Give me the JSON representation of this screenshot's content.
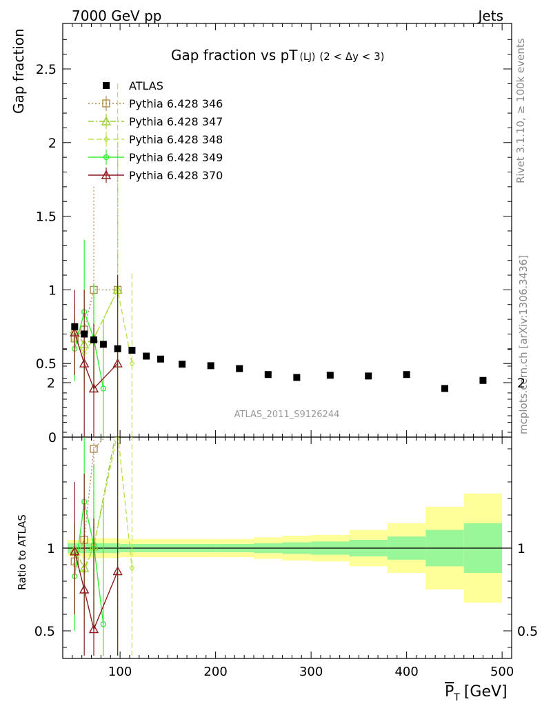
{
  "header": {
    "left": "7000 GeV pp",
    "right": "Jets",
    "side_top": "Rivet 3.1.10, ≥ 100k events",
    "side_bottom": "mcplots.cern.ch [arXiv:1306.3436]"
  },
  "chart_data": {
    "type": "scatter",
    "title": "Gap fraction vs pT",
    "title_sub": "(LJ)",
    "title_cut": "(2 < Δy < 3)",
    "ylabel": "Gap fraction",
    "ratio_ylabel": "Ratio to ATLAS",
    "xlabel": "P",
    "xlabel_sub": "T",
    "xlabel_unit": "[GeV]",
    "watermark": "ATLAS_2011_S9126244",
    "xlim": [
      40,
      510
    ],
    "ylim": [
      0,
      2.8
    ],
    "ratio_ylim": [
      0.35,
      2.3
    ],
    "xticks": [
      100,
      200,
      300,
      400,
      500
    ],
    "yticks": [
      0,
      0.5,
      1,
      1.5,
      2,
      2.5
    ],
    "ratio_yticks": [
      0.5,
      1,
      2
    ],
    "grid": false,
    "legend_position": "top-left",
    "data": {
      "name": "ATLAS",
      "points": [
        {
          "x": 52.5,
          "y": 0.75,
          "xlo": 45,
          "xhi": 60
        },
        {
          "x": 62.5,
          "y": 0.7,
          "xlo": 60,
          "xhi": 65
        },
        {
          "x": 72.5,
          "y": 0.66,
          "xlo": 70,
          "xhi": 75
        },
        {
          "x": 82.5,
          "y": 0.63,
          "xlo": 80,
          "xhi": 85
        },
        {
          "x": 97.5,
          "y": 0.6,
          "xlo": 95,
          "xhi": 100
        },
        {
          "x": 112.5,
          "y": 0.59,
          "xlo": 110,
          "xhi": 115
        },
        {
          "x": 127.5,
          "y": 0.55,
          "xlo": 120,
          "xhi": 135
        },
        {
          "x": 142.5,
          "y": 0.53,
          "xlo": 135,
          "xhi": 150
        },
        {
          "x": 165,
          "y": 0.495,
          "xlo": 150,
          "xhi": 180
        },
        {
          "x": 195,
          "y": 0.485,
          "xlo": 180,
          "xhi": 210
        },
        {
          "x": 225,
          "y": 0.465,
          "xlo": 210,
          "xhi": 240
        },
        {
          "x": 255,
          "y": 0.425,
          "xlo": 240,
          "xhi": 270
        },
        {
          "x": 285,
          "y": 0.405,
          "xlo": 270,
          "xhi": 300
        },
        {
          "x": 320,
          "y": 0.42,
          "xlo": 300,
          "xhi": 340
        },
        {
          "x": 360,
          "y": 0.415,
          "xlo": 340,
          "xhi": 380
        },
        {
          "x": 400,
          "y": 0.425,
          "xlo": 380,
          "xhi": 420
        },
        {
          "x": 440,
          "y": 0.33,
          "xlo": 420,
          "xhi": 460
        },
        {
          "x": 480,
          "y": 0.385,
          "xlo": 460,
          "xhi": 500
        }
      ],
      "band": [
        {
          "xlo": 45,
          "xhi": 60,
          "g": 0.03,
          "y": 0.05
        },
        {
          "xlo": 60,
          "xhi": 100,
          "g": 0.03,
          "y": 0.06
        },
        {
          "xlo": 100,
          "xhi": 200,
          "g": 0.025,
          "y": 0.055
        },
        {
          "xlo": 200,
          "xhi": 240,
          "g": 0.025,
          "y": 0.055
        },
        {
          "xlo": 240,
          "xhi": 270,
          "g": 0.03,
          "y": 0.065
        },
        {
          "xlo": 270,
          "xhi": 300,
          "g": 0.035,
          "y": 0.075
        },
        {
          "xlo": 300,
          "xhi": 340,
          "g": 0.04,
          "y": 0.08
        },
        {
          "xlo": 340,
          "xhi": 380,
          "g": 0.05,
          "y": 0.11
        },
        {
          "xlo": 380,
          "xhi": 420,
          "g": 0.07,
          "y": 0.15
        },
        {
          "xlo": 420,
          "xhi": 460,
          "g": 0.11,
          "y": 0.25
        },
        {
          "xlo": 460,
          "xhi": 500,
          "g": 0.15,
          "y": 0.33
        }
      ]
    },
    "series": [
      {
        "name": "Pythia 6.428 346",
        "color": "#b08a4e",
        "marker": "square",
        "dash": "2,3",
        "points": [
          {
            "x": 52.5,
            "y": 0.67,
            "lo": 0.54,
            "hi": 0.8,
            "r": 0.92,
            "rlo": 0.78,
            "rhi": 1.05
          },
          {
            "x": 62.5,
            "y": 0.73,
            "lo": 0.55,
            "hi": 0.91,
            "r": 1.05,
            "rlo": 0.85,
            "rhi": 1.25
          },
          {
            "x": 72.5,
            "y": 1.0,
            "lo": 0.3,
            "hi": 1.7,
            "r": 1.6,
            "rlo": 0.8,
            "rhi": 2.3
          },
          {
            "x": 97.5,
            "y": 1.0,
            "lo": 0.0,
            "hi": 2.0,
            "r": 1.75,
            "rlo": 0.35,
            "rhi": 2.3
          }
        ]
      },
      {
        "name": "Pythia 6.428 347",
        "color": "#9acd32",
        "marker": "triangle",
        "dash": "8,3,2,3",
        "points": [
          {
            "x": 52.5,
            "y": 0.73,
            "lo": 0.55,
            "hi": 0.91,
            "r": 0.99,
            "rlo": 0.8,
            "rhi": 1.15
          },
          {
            "x": 62.5,
            "y": 0.63,
            "lo": 0.4,
            "hi": 0.86,
            "r": 0.88,
            "rlo": 0.6,
            "rhi": 1.15
          },
          {
            "x": 72.5,
            "y": 0.67,
            "lo": 0.4,
            "hi": 0.94,
            "r": 1.01,
            "rlo": 0.65,
            "rhi": 1.35
          },
          {
            "x": 97.5,
            "y": 1.0,
            "lo": 0.0,
            "hi": 2.0,
            "r": 1.75,
            "rlo": 0.35,
            "rhi": 2.3
          }
        ]
      },
      {
        "name": "Pythia 6.428 348",
        "color": "#b8e54a",
        "marker": "diamond",
        "dash": "8,4",
        "points": [
          {
            "x": 52.5,
            "y": 0.66,
            "lo": 0.5,
            "hi": 0.82,
            "r": 0.9,
            "rlo": 0.7,
            "rhi": 1.1
          },
          {
            "x": 62.5,
            "y": 0.57,
            "lo": 0.3,
            "hi": 0.84,
            "r": 0.86,
            "rlo": 0.5,
            "rhi": 1.22
          },
          {
            "x": 72.5,
            "y": 0.67,
            "lo": 0.3,
            "hi": 1.04,
            "r": 1.01,
            "rlo": 0.5,
            "rhi": 1.5
          },
          {
            "x": 97.5,
            "y": 1.0,
            "lo": 0.0,
            "hi": 2.4,
            "r": 1.7,
            "rlo": 0.35,
            "rhi": 2.3
          },
          {
            "x": 112.5,
            "y": 0.5,
            "lo": 0.0,
            "hi": 1.11,
            "r": 0.88,
            "rlo": 0.35,
            "rhi": 1.88
          }
        ]
      },
      {
        "name": "Pythia 6.428 349",
        "color": "#33ee33",
        "marker": "circle",
        "dash": "",
        "points": [
          {
            "x": 52.5,
            "y": 0.6,
            "lo": 0.38,
            "hi": 0.82,
            "r": 0.83,
            "rlo": 0.5,
            "rhi": 1.15
          },
          {
            "x": 62.5,
            "y": 0.85,
            "lo": 0.38,
            "hi": 1.34,
            "r": 1.28,
            "rlo": 0.6,
            "rhi": 1.92
          },
          {
            "x": 72.5,
            "y": 0.67,
            "lo": 0.3,
            "hi": 1.04,
            "r": 1.02,
            "rlo": 0.5,
            "rhi": 1.5
          },
          {
            "x": 82.5,
            "y": 0.33,
            "lo": 0.0,
            "hi": 0.8,
            "r": 0.54,
            "rlo": 0.35,
            "rhi": 1.28
          }
        ]
      },
      {
        "name": "Pythia 6.428 370",
        "color": "#8b1a1a",
        "marker": "triangle",
        "dash": "",
        "points": [
          {
            "x": 52.5,
            "y": 0.71,
            "lo": 0.42,
            "hi": 1.0,
            "r": 0.98,
            "rlo": 0.6,
            "rhi": 1.4
          },
          {
            "x": 62.5,
            "y": 0.5,
            "lo": 0.0,
            "hi": 1.0,
            "r": 0.75,
            "rlo": 0.35,
            "rhi": 1.45
          },
          {
            "x": 72.5,
            "y": 0.33,
            "lo": 0.0,
            "hi": 0.77,
            "r": 0.51,
            "rlo": 0.35,
            "rhi": 1.18
          },
          {
            "x": 97.5,
            "y": 0.5,
            "lo": 0.0,
            "hi": 1.1,
            "r": 0.86,
            "rlo": 0.35,
            "rhi": 1.88
          }
        ]
      }
    ]
  }
}
